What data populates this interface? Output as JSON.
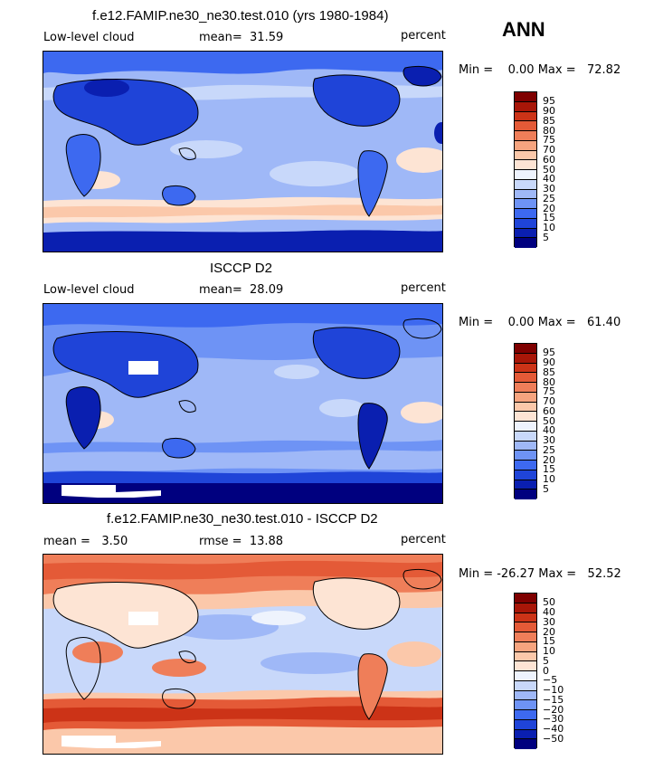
{
  "season": "ANN",
  "colors": {
    "abs_scale": [
      "#00007f",
      "#0a1fb0",
      "#1f44d8",
      "#3d69f0",
      "#6e93f5",
      "#9fb8f7",
      "#c8d8fa",
      "#eef3fd",
      "#fde4d4",
      "#fbc8aa",
      "#f6a47f",
      "#ef7e59",
      "#e45a37",
      "#cc3317",
      "#a81608",
      "#7f0000"
    ],
    "diff_scale": [
      "#00007f",
      "#0a1fb0",
      "#1f44d8",
      "#3d69f0",
      "#6e93f5",
      "#9fb8f7",
      "#c8d8fa",
      "#eef3fd",
      "#fde4d4",
      "#fbc8aa",
      "#f6a47f",
      "#ef7e59",
      "#e45a37",
      "#cc3317",
      "#a81608",
      "#7f0000"
    ]
  },
  "panels": [
    {
      "title": "f.e12.FAMIP.ne30_ne30.test.010 (yrs 1980-1984)",
      "left_label": "Low-level cloud",
      "mid_label": "mean=",
      "mid_value": "31.59",
      "units": "percent",
      "minmax": "Min =    0.00 Max =   72.82",
      "legend_labels": [
        "95",
        "90",
        "85",
        "80",
        "75",
        "70",
        "60",
        "50",
        "40",
        "30",
        "25",
        "20",
        "15",
        "10",
        "5"
      ]
    },
    {
      "title": "ISCCP D2",
      "left_label": "Low-level cloud",
      "mid_label": "mean=",
      "mid_value": "28.09",
      "units": "percent",
      "minmax": "Min =    0.00 Max =   61.40",
      "legend_labels": [
        "95",
        "90",
        "85",
        "80",
        "75",
        "70",
        "60",
        "50",
        "40",
        "30",
        "25",
        "20",
        "15",
        "10",
        "5"
      ]
    },
    {
      "title": "f.e12.FAMIP.ne30_ne30.test.010 - ISCCP D2",
      "left_label": "mean =",
      "left_value": "3.50",
      "mid_label": "rmse =",
      "mid_value": "13.88",
      "units": "percent",
      "minmax": "Min = -26.27 Max =   52.52",
      "legend_labels": [
        "50",
        "40",
        "30",
        "20",
        "15",
        "10",
        "5",
        "0",
        "−5",
        "−10",
        "−15",
        "−20",
        "−30",
        "−40",
        "−50"
      ]
    }
  ]
}
